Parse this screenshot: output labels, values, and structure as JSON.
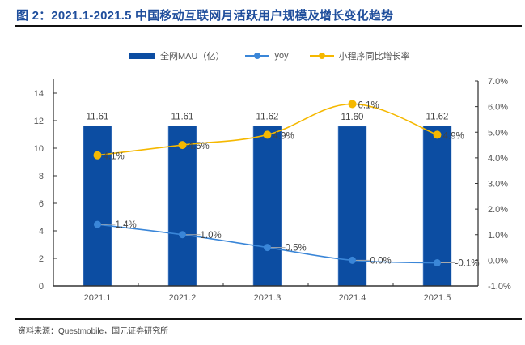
{
  "title": "图 2：2021.1-2021.5 中国移动互联网月活跃用户规模及增长变化趋势",
  "source": "资料来源：Questmobile，国元证券研究所",
  "colors": {
    "bar": "#0c4da2",
    "yoy": "#3a86d8",
    "mini_program": "#f5b800",
    "title": "#1f4e9c"
  },
  "chart_data": {
    "type": "bar",
    "title": "2021.1-2021.5 中国移动互联网月活跃用户规模及增长变化趋势",
    "categories": [
      "2021.1",
      "2021.2",
      "2021.3",
      "2021.4",
      "2021.5"
    ],
    "series": [
      {
        "name": "全网MAU（亿）",
        "type": "bar",
        "axis": "left",
        "values": [
          11.61,
          11.61,
          11.62,
          11.6,
          11.62
        ],
        "labels": [
          "11.61",
          "11.61",
          "11.62",
          "11.60",
          "11.62"
        ]
      },
      {
        "name": "yoy",
        "type": "line",
        "axis": "right",
        "values": [
          1.4,
          1.0,
          0.5,
          0.0,
          -0.1
        ],
        "labels": [
          "1.4%",
          "1.0%",
          "0.5%",
          "0.0%",
          "-0.1%"
        ]
      },
      {
        "name": "小程序同比增长率",
        "type": "line",
        "smooth": true,
        "axis": "right",
        "values": [
          4.1,
          4.5,
          4.9,
          6.1,
          4.9
        ],
        "labels": [
          "4.1%",
          "4.5%",
          "4.9%",
          "6.1%",
          "4.9%"
        ]
      }
    ],
    "y_left": {
      "min": 0,
      "max": 14,
      "ticks": [
        "0",
        "2",
        "4",
        "6",
        "8",
        "10",
        "12",
        "14"
      ],
      "tick_values": [
        0,
        2,
        4,
        6,
        8,
        10,
        12,
        14
      ]
    },
    "y_right": {
      "min": -1.0,
      "max": 7.0,
      "ticks": [
        "-1.0%",
        "0.0%",
        "1.0%",
        "2.0%",
        "3.0%",
        "4.0%",
        "5.0%",
        "6.0%",
        "7.0%"
      ],
      "tick_values": [
        -1,
        0,
        1,
        2,
        3,
        4,
        5,
        6,
        7
      ]
    },
    "legend": {
      "position": "top",
      "items": [
        "全网MAU（亿）",
        "yoy",
        "小程序同比增长率"
      ]
    },
    "grid": false
  }
}
